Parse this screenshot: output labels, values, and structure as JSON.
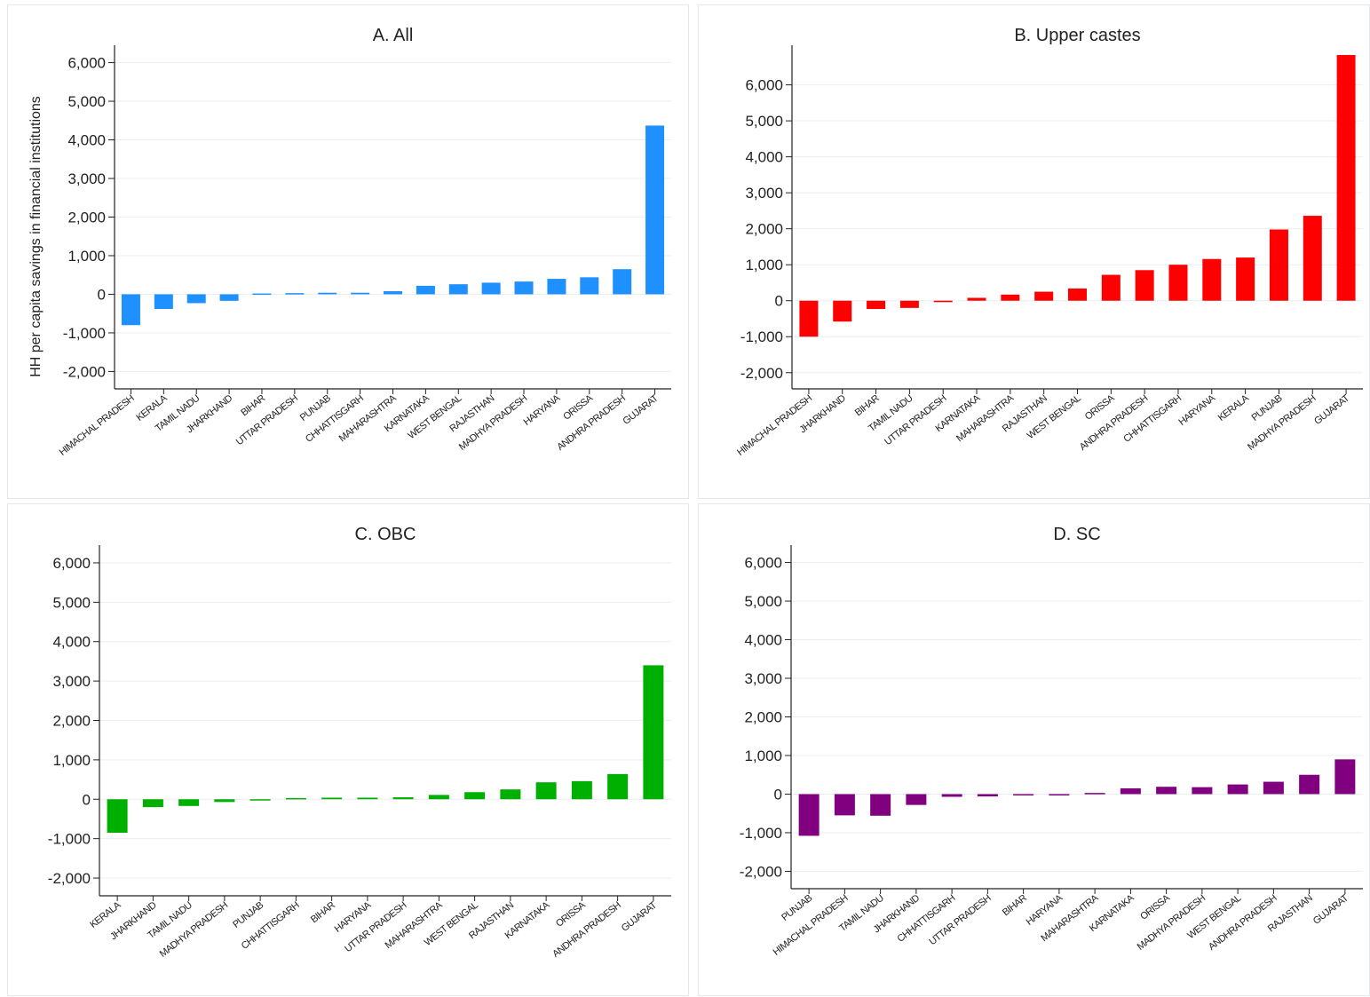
{
  "figure": {
    "ylabel": "HH per capita savings in financial institutions"
  },
  "chart_data": [
    {
      "type": "bar",
      "title": "A. All",
      "color": "#1e90ff",
      "ylabel": "HH per capita savings in financial institutions",
      "yticks": [
        -2000,
        -1000,
        0,
        1000,
        2000,
        3000,
        4000,
        5000,
        6000
      ],
      "ytick_labels": [
        "-2,000",
        "-1,000",
        "0",
        "1,000",
        "2,000",
        "3,000",
        "4,000",
        "5,000",
        "6,000"
      ],
      "ylim": [
        -2450,
        6450
      ],
      "grid": true,
      "categories": [
        "HIMACHAL PRADESH",
        "KERALA",
        "TAMIL NADU",
        "JHARKHAND",
        "BIHAR",
        "UTTAR PRADESH",
        "PUNJAB",
        "CHHATTISGARH",
        "MAHARASHTRA",
        "KARNATAKA",
        "WEST BENGAL",
        "RAJASTHAN",
        "MADHYA PRADESH",
        "HARYANA",
        "ORISSA",
        "ANDHRA PRADESH",
        "GUJARAT"
      ],
      "values": [
        -800,
        -380,
        -230,
        -170,
        20,
        30,
        40,
        40,
        80,
        220,
        260,
        300,
        330,
        400,
        440,
        650,
        4370
      ]
    },
    {
      "type": "bar",
      "title": "B. Upper castes",
      "color": "#ff0000",
      "ylabel": "",
      "yticks": [
        -2000,
        -1000,
        0,
        1000,
        2000,
        3000,
        4000,
        5000,
        6000
      ],
      "ytick_labels": [
        "-2,000",
        "-1,000",
        "0",
        "1,000",
        "2,000",
        "3,000",
        "4,000",
        "5,000",
        "6,000"
      ],
      "ylim": [
        -2450,
        7100
      ],
      "grid": true,
      "categories": [
        "HIMACHAL PRADESH",
        "JHARKHAND",
        "BIHAR",
        "TAMIL NADU",
        "UTTAR PRADESH",
        "KARNATAKA",
        "MAHARASHTRA",
        "RAJASTHAN",
        "WEST BENGAL",
        "ORISSA",
        "ANDHRA PRADESH",
        "CHHATTISGARH",
        "HARYANA",
        "KERALA",
        "PUNJAB",
        "MADHYA PRADESH",
        "GUJARAT"
      ],
      "values": [
        -1000,
        -580,
        -230,
        -200,
        -40,
        80,
        170,
        250,
        340,
        720,
        850,
        1000,
        1160,
        1200,
        1980,
        2360,
        6830
      ]
    },
    {
      "type": "bar",
      "title": "C. OBC",
      "color": "#00b000",
      "ylabel": "",
      "yticks": [
        -2000,
        -1000,
        0,
        1000,
        2000,
        3000,
        4000,
        5000,
        6000
      ],
      "ytick_labels": [
        "-2,000",
        "-1,000",
        "0",
        "1,000",
        "2,000",
        "3,000",
        "4,000",
        "5,000",
        "6,000"
      ],
      "ylim": [
        -2450,
        6450
      ],
      "grid": true,
      "categories": [
        "KERALA",
        "JHARKHAND",
        "TAMIL NADU",
        "MADHYA PRADESH",
        "PUNJAB",
        "CHHATTISGARH",
        "BIHAR",
        "HARYANA",
        "UTTAR PRADESH",
        "MAHARASHTRA",
        "WEST BENGAL",
        "RAJASTHAN",
        "KARNATAKA",
        "ORISSA",
        "ANDHRA PRADESH",
        "GUJARAT"
      ],
      "values": [
        -850,
        -200,
        -170,
        -70,
        -20,
        30,
        40,
        40,
        50,
        110,
        180,
        250,
        430,
        460,
        640,
        3400
      ]
    },
    {
      "type": "bar",
      "title": "D. SC",
      "color": "#800080",
      "ylabel": "",
      "yticks": [
        -2000,
        -1000,
        0,
        1000,
        2000,
        3000,
        4000,
        5000,
        6000
      ],
      "ytick_labels": [
        "-2,000",
        "-1,000",
        "0",
        "1,000",
        "2,000",
        "3,000",
        "4,000",
        "5,000",
        "6,000"
      ],
      "ylim": [
        -2450,
        6450
      ],
      "grid": true,
      "categories": [
        "PUNJAB",
        "HIMACHAL PRADESH",
        "TAMIL NADU",
        "JHARKHAND",
        "CHHATTISGARH",
        "UTTAR PRADESH",
        "BIHAR",
        "HARYANA",
        "MAHARASHTRA",
        "KARNATAKA",
        "ORISSA",
        "MADHYA PRADESH",
        "WEST BENGAL",
        "ANDHRA PRADESH",
        "RAJASTHAN",
        "GUJARAT"
      ],
      "values": [
        -1080,
        -550,
        -560,
        -280,
        -70,
        -60,
        -20,
        -20,
        30,
        150,
        190,
        180,
        250,
        320,
        500,
        900
      ]
    }
  ]
}
